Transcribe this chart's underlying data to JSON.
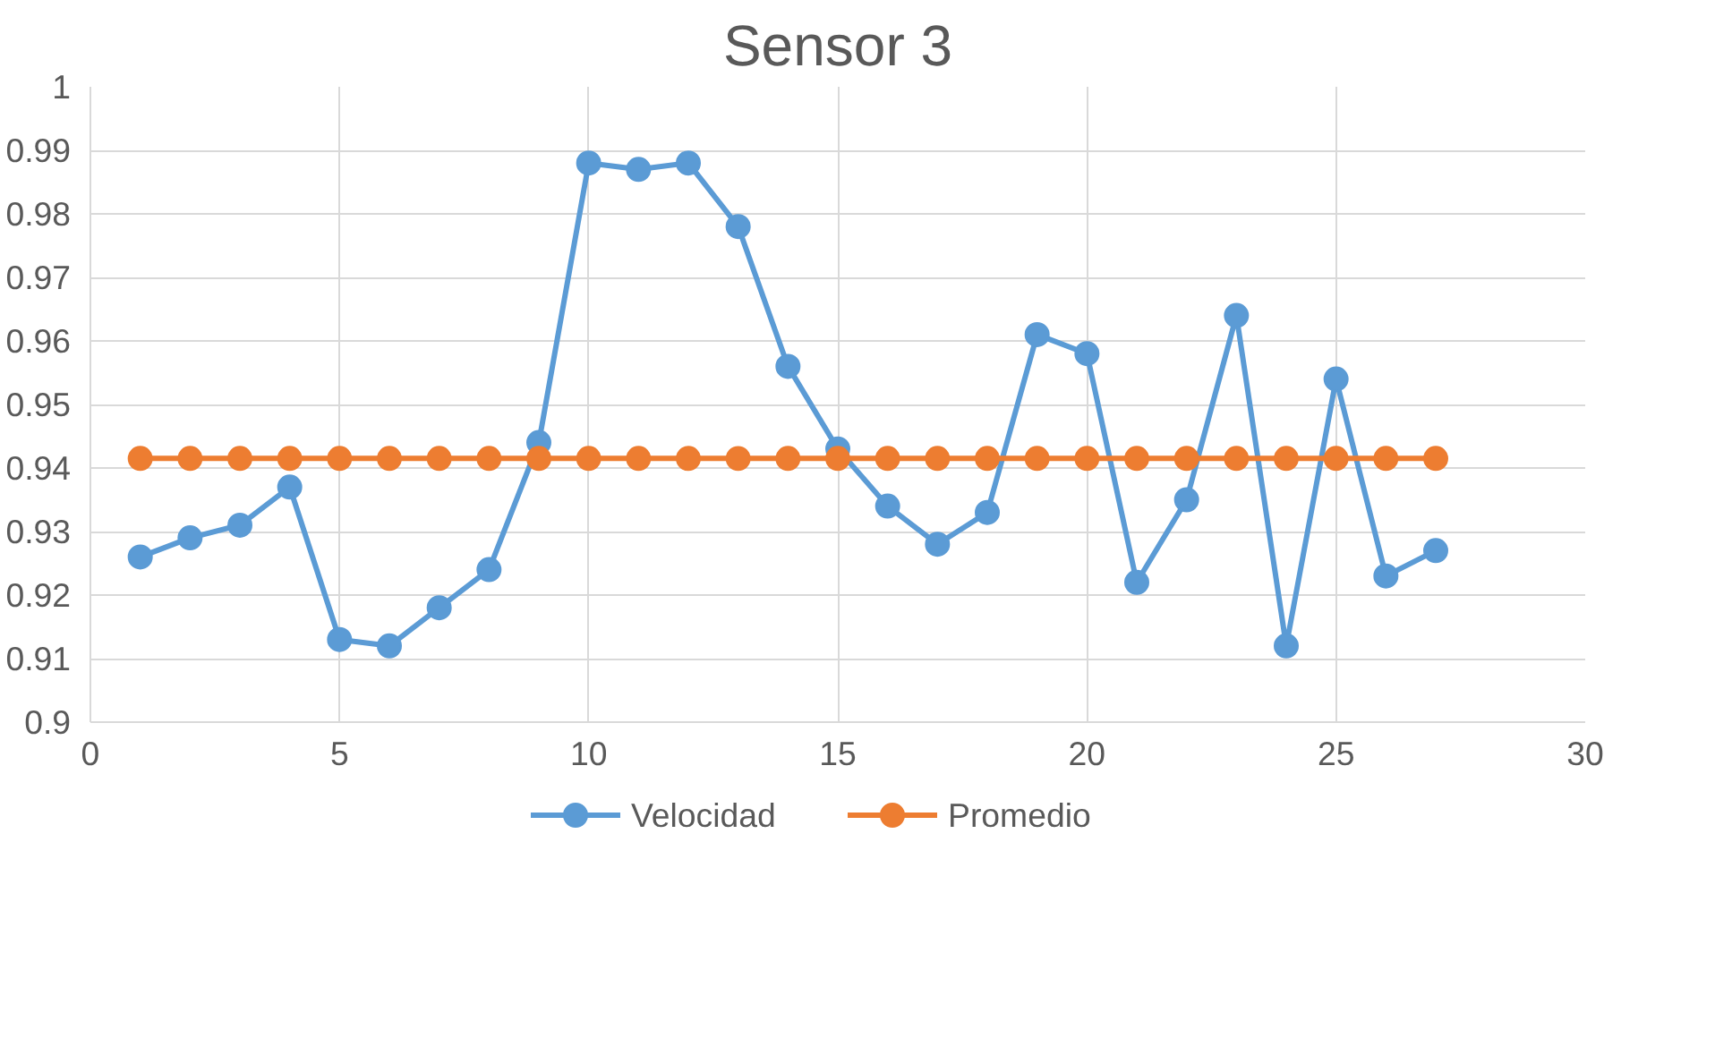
{
  "chart_data": {
    "type": "line",
    "title": "Sensor 3",
    "x": [
      1,
      2,
      3,
      4,
      5,
      6,
      7,
      8,
      9,
      10,
      11,
      12,
      13,
      14,
      15,
      16,
      17,
      18,
      19,
      20,
      21,
      22,
      23,
      24,
      25,
      26,
      27
    ],
    "series": [
      {
        "name": "Velocidad",
        "color": "#5b9bd5",
        "values": [
          0.926,
          0.929,
          0.931,
          0.937,
          0.913,
          0.912,
          0.918,
          0.924,
          0.944,
          0.988,
          0.987,
          0.988,
          0.978,
          0.956,
          0.943,
          0.934,
          0.928,
          0.933,
          0.961,
          0.958,
          0.922,
          0.935,
          0.964,
          0.912,
          0.954,
          0.923,
          0.927
        ]
      },
      {
        "name": "Promedio",
        "color": "#ed7d31",
        "values": [
          0.9415,
          0.9415,
          0.9415,
          0.9415,
          0.9415,
          0.9415,
          0.9415,
          0.9415,
          0.9415,
          0.9415,
          0.9415,
          0.9415,
          0.9415,
          0.9415,
          0.9415,
          0.9415,
          0.9415,
          0.9415,
          0.9415,
          0.9415,
          0.9415,
          0.9415,
          0.9415,
          0.9415,
          0.9415,
          0.9415,
          0.9415
        ]
      }
    ],
    "xlim": [
      0,
      30
    ],
    "xticks": [
      0,
      5,
      10,
      15,
      20,
      25,
      30
    ],
    "ylim": [
      0.9,
      1
    ],
    "yticks": [
      0.9,
      0.91,
      0.92,
      0.93,
      0.94,
      0.95,
      0.96,
      0.97,
      0.98,
      0.99,
      1
    ],
    "grid": true,
    "legend": "bottom",
    "marker": "circle",
    "line_style": "solid"
  }
}
